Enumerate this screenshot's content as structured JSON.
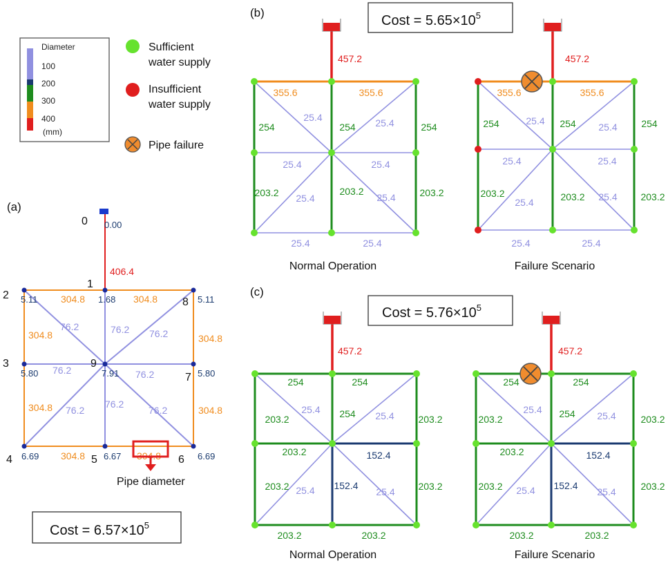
{
  "colors": {
    "d100": "#9090e0",
    "d150": "#1a3a70",
    "d200": "#1e8c1e",
    "d300": "#f08c1e",
    "d400": "#e01e1e",
    "node_ok": "#66e22e",
    "node_bad": "#e01e1e",
    "node_a": "#1a2a9a",
    "failure": "#f08c2e",
    "head_a": "#e01e1e",
    "node_label": "#1a3a6e"
  },
  "legend": {
    "title": "Diameter",
    "ticks": [
      "100",
      "200",
      "300",
      "400",
      "(mm)"
    ],
    "sufficient": [
      "Sufficient",
      "water supply"
    ],
    "insufficient": [
      "Insufficient",
      "water supply"
    ],
    "failure": "Pipe failure"
  },
  "panel_a": {
    "tag": "(a)",
    "node_ids": [
      "0",
      "1",
      "2",
      "3",
      "4",
      "5",
      "6",
      "7",
      "8",
      "9"
    ],
    "node_values": [
      "0.00",
      "1.68",
      "5.11",
      "5.80",
      "6.69",
      "6.67",
      "6.69",
      "5.80",
      "5.11",
      "7.91"
    ],
    "feed": "406.4",
    "pipes": {
      "top_left": "304.8",
      "top_right": "304.8",
      "left_upper": "304.8",
      "left_lower": "304.8",
      "right_upper": "304.8",
      "right_lower": "304.8",
      "bottom_left": "304.8",
      "bottom_right": "304.8",
      "d_upper_left": "76.2",
      "v_upper": "76.2",
      "d_upper_right": "76.2",
      "h_left": "76.2",
      "h_right": "76.2",
      "d_lower_left": "76.2",
      "v_lower": "76.2",
      "d_lower_right": "76.2"
    },
    "callout": "Pipe diameter",
    "cost": "Cost = 6.57×10",
    "cost_exp": "5"
  },
  "panel_b": {
    "tag": "(b)",
    "cost": "Cost = 5.65×10",
    "cost_exp": "5",
    "feed": "457.2",
    "pipes": {
      "top_left": "355.6",
      "top_right": "355.6",
      "left_upper": "254",
      "v_upper": "254",
      "right_upper": "254",
      "left_lower": "203.2",
      "v_lower": "203.2",
      "right_lower": "203.2",
      "d_tl": "25.4",
      "d_tr": "25.4",
      "h_left": "25.4",
      "h_right": "25.4",
      "d_bl": "25.4",
      "d_br": "25.4",
      "bottom_left": "25.4",
      "bottom_right": "25.4"
    },
    "captions": [
      "Normal Operation",
      "Failure Scenario"
    ]
  },
  "panel_c": {
    "tag": "(c)",
    "cost": "Cost = 5.76×10",
    "cost_exp": "5",
    "feed": "457.2",
    "pipes": {
      "top_left": "254",
      "top_right": "254",
      "left_upper": "203.2",
      "v_upper": "254",
      "right_upper": "203.2",
      "h_left": "203.2",
      "h_right": "152.4",
      "left_lower": "203.2",
      "v_lower": "152.4",
      "right_lower": "203.2",
      "d_tl": "25.4",
      "d_tr": "25.4",
      "d_bl": "25.4",
      "d_br": "25.4",
      "bottom_left": "203.2",
      "bottom_right": "203.2"
    },
    "captions": [
      "Normal Operation",
      "Failure Scenario"
    ]
  }
}
